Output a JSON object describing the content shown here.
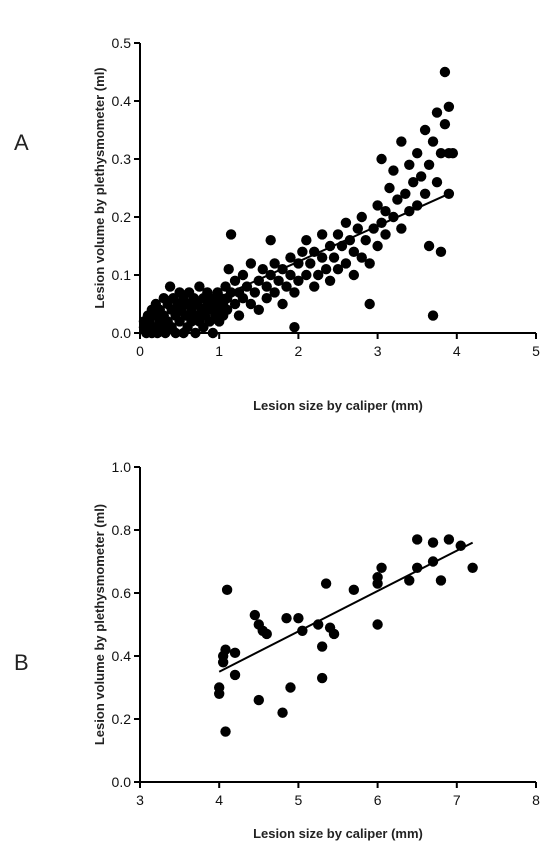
{
  "chart_data": [
    {
      "type": "scatter",
      "panel_label": "A",
      "xlabel": "Lesion size by caliper (mm)",
      "ylabel": "Lesion volume by plethysmometer (ml)",
      "xlim": [
        0,
        5
      ],
      "ylim": [
        0,
        0.5
      ],
      "xticks": [
        "0",
        "1",
        "2",
        "3",
        "4",
        "5"
      ],
      "yticks": [
        "0.0",
        "0.1",
        "0.2",
        "0.3",
        "0.4",
        "0.5"
      ],
      "trendline": [
        [
          0,
          0.0
        ],
        [
          3.9,
          0.24
        ]
      ],
      "points": [
        [
          0.05,
          0.01
        ],
        [
          0.05,
          0.02
        ],
        [
          0.08,
          0.0
        ],
        [
          0.1,
          0.01
        ],
        [
          0.1,
          0.03
        ],
        [
          0.12,
          0.02
        ],
        [
          0.15,
          0.0
        ],
        [
          0.15,
          0.04
        ],
        [
          0.18,
          0.01
        ],
        [
          0.2,
          0.03
        ],
        [
          0.2,
          0.05
        ],
        [
          0.22,
          0.0
        ],
        [
          0.25,
          0.02
        ],
        [
          0.25,
          0.04
        ],
        [
          0.28,
          0.01
        ],
        [
          0.3,
          0.03
        ],
        [
          0.3,
          0.06
        ],
        [
          0.32,
          0.0
        ],
        [
          0.35,
          0.02
        ],
        [
          0.35,
          0.05
        ],
        [
          0.38,
          0.08
        ],
        [
          0.4,
          0.01
        ],
        [
          0.4,
          0.04
        ],
        [
          0.42,
          0.06
        ],
        [
          0.45,
          0.0
        ],
        [
          0.45,
          0.03
        ],
        [
          0.48,
          0.05
        ],
        [
          0.5,
          0.02
        ],
        [
          0.5,
          0.07
        ],
        [
          0.52,
          0.04
        ],
        [
          0.55,
          0.0
        ],
        [
          0.55,
          0.06
        ],
        [
          0.58,
          0.03
        ],
        [
          0.6,
          0.05
        ],
        [
          0.6,
          0.01
        ],
        [
          0.62,
          0.07
        ],
        [
          0.65,
          0.02
        ],
        [
          0.65,
          0.04
        ],
        [
          0.68,
          0.06
        ],
        [
          0.7,
          0.0
        ],
        [
          0.7,
          0.03
        ],
        [
          0.72,
          0.05
        ],
        [
          0.75,
          0.08
        ],
        [
          0.75,
          0.02
        ],
        [
          0.78,
          0.04
        ],
        [
          0.8,
          0.06
        ],
        [
          0.8,
          0.01
        ],
        [
          0.82,
          0.03
        ],
        [
          0.85,
          0.05
        ],
        [
          0.85,
          0.07
        ],
        [
          0.88,
          0.02
        ],
        [
          0.9,
          0.04
        ],
        [
          0.9,
          0.06
        ],
        [
          0.92,
          0.0
        ],
        [
          0.95,
          0.03
        ],
        [
          0.95,
          0.05
        ],
        [
          0.98,
          0.07
        ],
        [
          1.0,
          0.04
        ],
        [
          1.0,
          0.02
        ],
        [
          1.02,
          0.06
        ],
        [
          1.05,
          0.03
        ],
        [
          1.05,
          0.05
        ],
        [
          1.08,
          0.08
        ],
        [
          1.1,
          0.06
        ],
        [
          1.1,
          0.04
        ],
        [
          1.12,
          0.11
        ],
        [
          1.15,
          0.17
        ],
        [
          1.15,
          0.07
        ],
        [
          1.2,
          0.05
        ],
        [
          1.2,
          0.09
        ],
        [
          1.25,
          0.03
        ],
        [
          1.25,
          0.07
        ],
        [
          1.3,
          0.06
        ],
        [
          1.3,
          0.1
        ],
        [
          1.35,
          0.08
        ],
        [
          1.4,
          0.05
        ],
        [
          1.4,
          0.12
        ],
        [
          1.45,
          0.07
        ],
        [
          1.5,
          0.09
        ],
        [
          1.5,
          0.04
        ],
        [
          1.55,
          0.11
        ],
        [
          1.6,
          0.06
        ],
        [
          1.6,
          0.08
        ],
        [
          1.65,
          0.16
        ],
        [
          1.65,
          0.1
        ],
        [
          1.7,
          0.07
        ],
        [
          1.7,
          0.12
        ],
        [
          1.75,
          0.09
        ],
        [
          1.8,
          0.05
        ],
        [
          1.8,
          0.11
        ],
        [
          1.85,
          0.08
        ],
        [
          1.9,
          0.13
        ],
        [
          1.9,
          0.1
        ],
        [
          1.95,
          0.01
        ],
        [
          1.95,
          0.07
        ],
        [
          2.0,
          0.12
        ],
        [
          2.0,
          0.09
        ],
        [
          2.05,
          0.14
        ],
        [
          2.1,
          0.1
        ],
        [
          2.1,
          0.16
        ],
        [
          2.15,
          0.12
        ],
        [
          2.2,
          0.08
        ],
        [
          2.2,
          0.14
        ],
        [
          2.25,
          0.1
        ],
        [
          2.3,
          0.13
        ],
        [
          2.3,
          0.17
        ],
        [
          2.35,
          0.11
        ],
        [
          2.4,
          0.15
        ],
        [
          2.4,
          0.09
        ],
        [
          2.45,
          0.13
        ],
        [
          2.5,
          0.17
        ],
        [
          2.5,
          0.11
        ],
        [
          2.55,
          0.15
        ],
        [
          2.6,
          0.19
        ],
        [
          2.6,
          0.12
        ],
        [
          2.65,
          0.16
        ],
        [
          2.7,
          0.1
        ],
        [
          2.7,
          0.14
        ],
        [
          2.75,
          0.18
        ],
        [
          2.8,
          0.13
        ],
        [
          2.8,
          0.2
        ],
        [
          2.85,
          0.16
        ],
        [
          2.9,
          0.12
        ],
        [
          2.9,
          0.05
        ],
        [
          2.95,
          0.18
        ],
        [
          3.0,
          0.22
        ],
        [
          3.0,
          0.15
        ],
        [
          3.05,
          0.19
        ],
        [
          3.05,
          0.3
        ],
        [
          3.1,
          0.21
        ],
        [
          3.1,
          0.17
        ],
        [
          3.15,
          0.25
        ],
        [
          3.2,
          0.2
        ],
        [
          3.2,
          0.28
        ],
        [
          3.25,
          0.23
        ],
        [
          3.3,
          0.18
        ],
        [
          3.3,
          0.33
        ],
        [
          3.35,
          0.24
        ],
        [
          3.4,
          0.21
        ],
        [
          3.4,
          0.29
        ],
        [
          3.45,
          0.26
        ],
        [
          3.5,
          0.22
        ],
        [
          3.5,
          0.31
        ],
        [
          3.55,
          0.27
        ],
        [
          3.6,
          0.24
        ],
        [
          3.6,
          0.35
        ],
        [
          3.65,
          0.15
        ],
        [
          3.65,
          0.29
        ],
        [
          3.7,
          0.03
        ],
        [
          3.7,
          0.33
        ],
        [
          3.75,
          0.26
        ],
        [
          3.75,
          0.38
        ],
        [
          3.8,
          0.31
        ],
        [
          3.8,
          0.14
        ],
        [
          3.85,
          0.45
        ],
        [
          3.85,
          0.36
        ],
        [
          3.9,
          0.31
        ],
        [
          3.9,
          0.24
        ],
        [
          3.95,
          0.31
        ],
        [
          3.9,
          0.39
        ]
      ]
    },
    {
      "type": "scatter",
      "panel_label": "B",
      "xlabel": "Lesion size by caliper (mm)",
      "ylabel": "Lesion volume by plethysmometer (ml)",
      "xlim": [
        3,
        8
      ],
      "ylim": [
        0,
        1.0
      ],
      "xticks": [
        "3",
        "4",
        "5",
        "6",
        "7",
        "8"
      ],
      "yticks": [
        "0.0",
        "0.2",
        "0.4",
        "0.6",
        "0.8",
        "1.0"
      ],
      "trendline": [
        [
          4.0,
          0.35
        ],
        [
          7.2,
          0.76
        ]
      ],
      "points": [
        [
          4.0,
          0.28
        ],
        [
          4.0,
          0.3
        ],
        [
          4.05,
          0.4
        ],
        [
          4.05,
          0.38
        ],
        [
          4.08,
          0.42
        ],
        [
          4.08,
          0.16
        ],
        [
          4.1,
          0.61
        ],
        [
          4.2,
          0.41
        ],
        [
          4.2,
          0.34
        ],
        [
          4.45,
          0.53
        ],
        [
          4.5,
          0.26
        ],
        [
          4.5,
          0.5
        ],
        [
          4.55,
          0.48
        ],
        [
          4.6,
          0.47
        ],
        [
          4.8,
          0.22
        ],
        [
          4.85,
          0.52
        ],
        [
          4.9,
          0.3
        ],
        [
          5.0,
          0.52
        ],
        [
          5.05,
          0.48
        ],
        [
          5.25,
          0.5
        ],
        [
          5.3,
          0.33
        ],
        [
          5.3,
          0.43
        ],
        [
          5.35,
          0.63
        ],
        [
          5.4,
          0.49
        ],
        [
          5.45,
          0.47
        ],
        [
          5.7,
          0.61
        ],
        [
          6.0,
          0.5
        ],
        [
          6.0,
          0.63
        ],
        [
          6.0,
          0.65
        ],
        [
          6.05,
          0.68
        ],
        [
          6.4,
          0.64
        ],
        [
          6.5,
          0.68
        ],
        [
          6.5,
          0.77
        ],
        [
          6.7,
          0.7
        ],
        [
          6.7,
          0.76
        ],
        [
          6.8,
          0.64
        ],
        [
          6.9,
          0.77
        ],
        [
          7.05,
          0.75
        ],
        [
          7.2,
          0.68
        ]
      ]
    }
  ]
}
